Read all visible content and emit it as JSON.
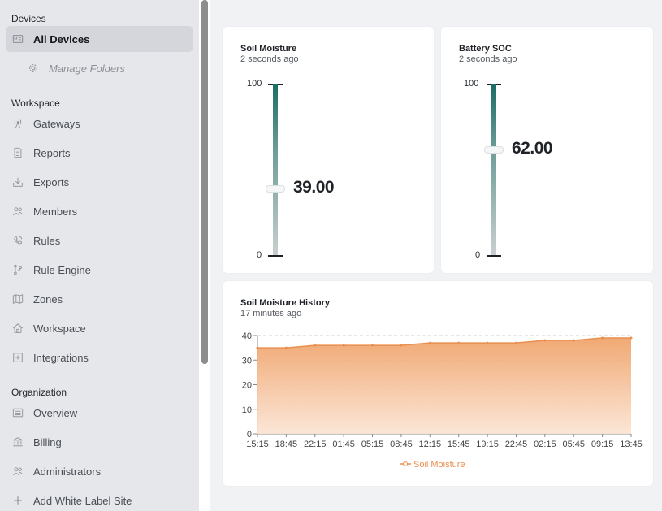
{
  "sidebar": {
    "devices_header": "Devices",
    "all_devices": "All Devices",
    "manage_folders": "Manage Folders",
    "workspace_header": "Workspace",
    "workspace_items": [
      "Gateways",
      "Reports",
      "Exports",
      "Members",
      "Rules",
      "Rule Engine",
      "Zones",
      "Workspace",
      "Integrations"
    ],
    "organization_header": "Organization",
    "organization_items": [
      "Overview",
      "Billing",
      "Administrators",
      "Add White Label Site"
    ]
  },
  "soil_card": {
    "title": "Soil Moisture",
    "updated": "2 seconds ago",
    "max": "100",
    "min": "0",
    "value": "39.00",
    "level": 39
  },
  "battery_card": {
    "title": "Battery SOC",
    "updated": "2 seconds ago",
    "max": "100",
    "min": "0",
    "value": "62.00",
    "level": 62
  },
  "history_card": {
    "title": "Soil Moisture History",
    "updated": "17 minutes ago"
  },
  "colors": {
    "accent_orange": "#f0a46c",
    "gauge_dark": "#1b6d66"
  },
  "chart_data": {
    "type": "area",
    "title": "",
    "xlabel": "",
    "ylabel": "",
    "ylim": [
      0,
      40
    ],
    "yticks": [
      "0",
      "10",
      "20",
      "30",
      "40"
    ],
    "categories": [
      "15:15",
      "18:45",
      "22:15",
      "01:45",
      "05:15",
      "08:45",
      "12:15",
      "15:45",
      "19:15",
      "22:45",
      "02:15",
      "05:45",
      "09:15",
      "13:45"
    ],
    "series": [
      {
        "name": "Soil Moisture",
        "values": [
          35,
          35,
          36,
          36,
          36,
          36,
          37,
          37,
          37,
          37,
          38,
          38,
          39,
          39
        ]
      }
    ],
    "legend": "bottom-center",
    "grid": "horizontal-dashed"
  }
}
